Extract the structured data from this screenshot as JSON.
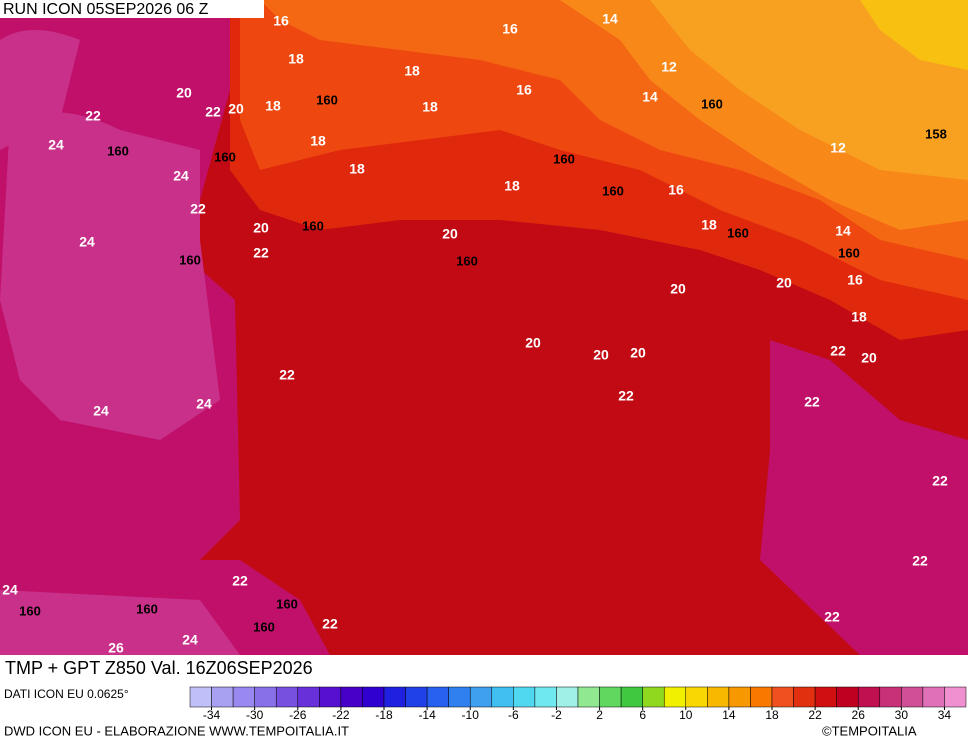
{
  "header": {
    "run": "RUN ICON 05SEP2026 06 Z"
  },
  "map": {
    "title": "TMP + GPT Z850 Val. 16Z06SEP2026",
    "contour_labels": {
      "temperature": [
        16,
        14,
        16,
        18,
        18,
        12,
        20,
        22,
        20,
        18,
        14,
        16,
        18,
        22,
        24,
        18,
        12,
        24,
        18,
        18,
        16,
        22,
        18,
        20,
        14,
        24,
        20,
        22,
        16,
        20,
        20,
        18,
        22,
        20,
        20,
        20,
        20,
        22,
        22,
        22,
        24,
        24,
        22,
        22,
        22,
        24,
        24,
        22,
        26,
        22
      ],
      "geopotential": [
        160,
        158,
        160,
        160,
        160,
        160,
        160,
        160,
        160,
        160,
        160,
        160,
        160,
        160,
        160,
        160
      ]
    }
  },
  "colorbar": {
    "range": [
      -36,
      36
    ],
    "ticks": [
      -34,
      -30,
      -26,
      -22,
      -18,
      -14,
      -10,
      -6,
      -2,
      2,
      6,
      10,
      14,
      18,
      22,
      26,
      30,
      34
    ],
    "colors": [
      "#c0c0f8",
      "#a8a0f0",
      "#9888f0",
      "#8870e8",
      "#7850e0",
      "#6830d8",
      "#5810d0",
      "#4800c8",
      "#3000d0",
      "#2020e0",
      "#2040e8",
      "#2860f0",
      "#3080f0",
      "#40a0f0",
      "#40c0f0",
      "#50d8f0",
      "#70e8f0",
      "#a0f0e8",
      "#90e890",
      "#60d860",
      "#40c840",
      "#90d820",
      "#f0f000",
      "#f8d800",
      "#f8b800",
      "#f89800",
      "#f87800",
      "#f05020",
      "#e03010",
      "#d01010",
      "#c00020",
      "#c01050",
      "#c83078",
      "#d05098",
      "#e070b8",
      "#f090d0"
    ]
  },
  "footer": {
    "source": "DATI ICON EU 0.0625°",
    "credit": "DWD ICON EU - ELABORAZIONE WWW.TEMPOITALIA.IT",
    "brand": "©TEMPOITALIA"
  }
}
